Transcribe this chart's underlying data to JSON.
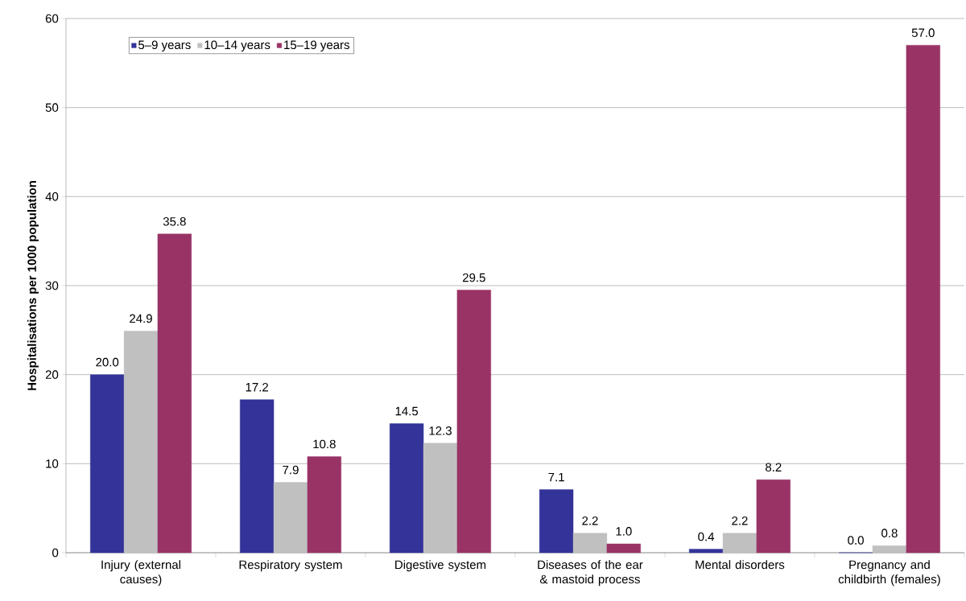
{
  "chart_data": {
    "type": "bar",
    "ylabel": "Hospitalisations per 1000 population",
    "categories": [
      "Injury (external causes)",
      "Respiratory system",
      "Digestive system",
      "Diseases of the ear & mastoid process",
      "Mental disorders",
      "Pregnancy and childbirth (females)"
    ],
    "series": [
      {
        "name": "5–9 years",
        "color": "#333399",
        "values": [
          20,
          17.2,
          14.5,
          7.1,
          0.4,
          0
        ],
        "value_labels": [
          "20.0",
          "17.2",
          "14.5",
          "7.1",
          "0.4",
          "0.0"
        ]
      },
      {
        "name": "10–14 years",
        "color": "#c0c0c0",
        "values": [
          24.9,
          7.9,
          12.3,
          2.2,
          2.2,
          0.8
        ],
        "value_labels": [
          "24.9",
          "7.9",
          "12.3",
          "2.2",
          "2.2",
          "0.8"
        ]
      },
      {
        "name": "15–19 years",
        "color": "#993366",
        "values": [
          35.8,
          10.8,
          29.5,
          1,
          8.2,
          57
        ],
        "value_labels": [
          "35.8",
          "10.8",
          "29.5",
          "1.0",
          "8.2",
          "57.0"
        ]
      }
    ],
    "ylim": [
      0,
      60
    ],
    "yticks": [
      0,
      10,
      20,
      30,
      40,
      50,
      60
    ],
    "grid": "y",
    "legend": "top left"
  }
}
